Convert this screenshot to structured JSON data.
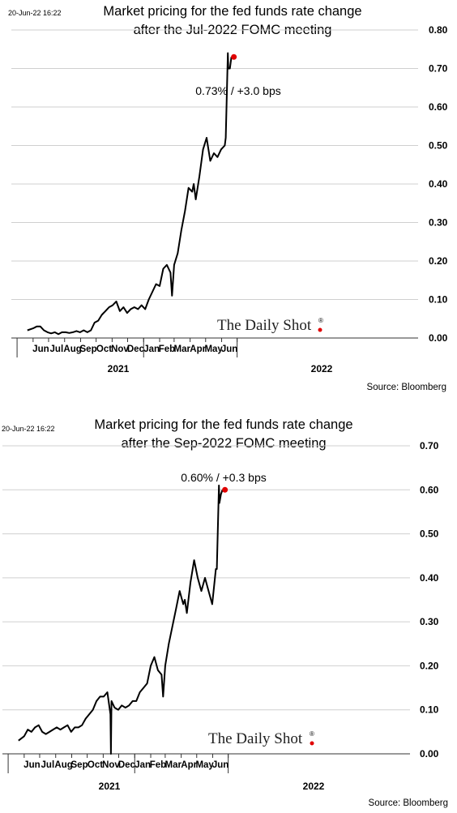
{
  "chart_data": [
    {
      "type": "line",
      "title_lines": [
        "Market pricing for the fed funds rate change",
        "after the Jul-2022 FOMC meeting"
      ],
      "timestamp": "20-Jun-22 16:22",
      "annotation": "0.73%  /  +3.0 bps",
      "watermark": "The Daily Shot",
      "watermark_mark": "®",
      "source": "Source: Bloomberg",
      "ylim": [
        0,
        0.8
      ],
      "yticks": [
        "0.00",
        "0.10",
        "0.20",
        "0.30",
        "0.40",
        "0.50",
        "0.60",
        "0.70",
        "0.80"
      ],
      "month_labels": [
        "Jun",
        "Jul",
        "Aug",
        "Sep",
        "Oct",
        "Nov",
        "Dec",
        "Jan",
        "Feb",
        "Mar",
        "Apr",
        "May",
        "Jun"
      ],
      "year_labels": [
        "2021",
        "2022"
      ],
      "grid": true,
      "x": [
        "2021-05-21",
        "2021-06-01",
        "2021-06-08",
        "2021-06-15",
        "2021-06-22",
        "2021-06-29",
        "2021-07-06",
        "2021-07-13",
        "2021-07-20",
        "2021-07-27",
        "2021-08-03",
        "2021-08-10",
        "2021-08-17",
        "2021-08-24",
        "2021-08-31",
        "2021-09-07",
        "2021-09-14",
        "2021-09-21",
        "2021-09-28",
        "2021-10-05",
        "2021-10-12",
        "2021-10-19",
        "2021-10-26",
        "2021-11-02",
        "2021-11-09",
        "2021-11-16",
        "2021-11-23",
        "2021-11-30",
        "2021-12-07",
        "2021-12-14",
        "2021-12-21",
        "2021-12-28",
        "2022-01-04",
        "2022-01-11",
        "2022-01-18",
        "2022-01-25",
        "2022-02-01",
        "2022-02-08",
        "2022-02-15",
        "2022-02-22",
        "2022-02-25",
        "2022-03-01",
        "2022-03-08",
        "2022-03-15",
        "2022-03-22",
        "2022-03-29",
        "2022-04-05",
        "2022-04-08",
        "2022-04-12",
        "2022-04-19",
        "2022-04-26",
        "2022-05-03",
        "2022-05-10",
        "2022-05-17",
        "2022-05-24",
        "2022-05-31",
        "2022-06-07",
        "2022-06-09",
        "2022-06-13",
        "2022-06-14",
        "2022-06-17",
        "2022-06-20"
      ],
      "series": [
        {
          "values": [
            0.02,
            0.025,
            0.03,
            0.03,
            0.02,
            0.015,
            0.012,
            0.015,
            0.01,
            0.015,
            0.015,
            0.013,
            0.015,
            0.018,
            0.015,
            0.02,
            0.015,
            0.02,
            0.04,
            0.045,
            0.06,
            0.07,
            0.08,
            0.085,
            0.095,
            0.07,
            0.08,
            0.065,
            0.075,
            0.08,
            0.075,
            0.085,
            0.075,
            0.1,
            0.12,
            0.14,
            0.135,
            0.18,
            0.19,
            0.17,
            0.11,
            0.19,
            0.22,
            0.28,
            0.33,
            0.39,
            0.38,
            0.4,
            0.36,
            0.42,
            0.49,
            0.52,
            0.46,
            0.48,
            0.47,
            0.49,
            0.5,
            0.52,
            0.74,
            0.7,
            0.7,
            0.73
          ]
        }
      ]
    },
    {
      "type": "line",
      "title_lines": [
        "Market pricing for the fed funds rate change",
        "after the Sep-2022 FOMC meeting"
      ],
      "timestamp": "20-Jun-22 16:22",
      "annotation": "0.60%  /  +0.3 bps",
      "watermark": "The Daily Shot",
      "watermark_mark": "®",
      "source": "Source: Bloomberg",
      "ylim": [
        0,
        0.7
      ],
      "yticks": [
        "0.00",
        "0.10",
        "0.20",
        "0.30",
        "0.40",
        "0.50",
        "0.60",
        "0.70"
      ],
      "month_labels": [
        "Jun",
        "Jul",
        "Aug",
        "Sep",
        "Oct",
        "Nov",
        "Dec",
        "Jan",
        "Feb",
        "Mar",
        "Apr",
        "May",
        "Jun"
      ],
      "year_labels": [
        "2021",
        "2022"
      ],
      "grid": true,
      "x": [
        "2021-05-21",
        "2021-06-01",
        "2021-06-08",
        "2021-06-15",
        "2021-06-22",
        "2021-06-29",
        "2021-07-06",
        "2021-07-13",
        "2021-07-20",
        "2021-07-27",
        "2021-08-03",
        "2021-08-10",
        "2021-08-17",
        "2021-08-24",
        "2021-08-31",
        "2021-09-07",
        "2021-09-14",
        "2021-09-21",
        "2021-09-28",
        "2021-10-05",
        "2021-10-12",
        "2021-10-19",
        "2021-10-26",
        "2021-11-02",
        "2021-11-09",
        "2021-11-15",
        "2021-11-16",
        "2021-11-17",
        "2021-11-23",
        "2021-11-30",
        "2021-12-07",
        "2021-12-14",
        "2021-12-21",
        "2021-12-28",
        "2022-01-04",
        "2022-01-11",
        "2022-01-18",
        "2022-01-25",
        "2022-02-01",
        "2022-02-08",
        "2022-02-15",
        "2022-02-22",
        "2022-02-25",
        "2022-03-01",
        "2022-03-08",
        "2022-03-15",
        "2022-03-22",
        "2022-03-29",
        "2022-04-05",
        "2022-04-08",
        "2022-04-12",
        "2022-04-19",
        "2022-04-26",
        "2022-05-03",
        "2022-05-10",
        "2022-05-17",
        "2022-05-24",
        "2022-05-31",
        "2022-06-07",
        "2022-06-09",
        "2022-06-13",
        "2022-06-14",
        "2022-06-17",
        "2022-06-20"
      ],
      "series": [
        {
          "values": [
            0.03,
            0.04,
            0.055,
            0.05,
            0.06,
            0.065,
            0.05,
            0.045,
            0.05,
            0.055,
            0.06,
            0.055,
            0.06,
            0.065,
            0.05,
            0.06,
            0.06,
            0.065,
            0.08,
            0.09,
            0.1,
            0.12,
            0.13,
            0.13,
            0.14,
            0.09,
            0.0,
            0.12,
            0.105,
            0.1,
            0.11,
            0.105,
            0.11,
            0.12,
            0.12,
            0.14,
            0.15,
            0.16,
            0.2,
            0.22,
            0.19,
            0.18,
            0.13,
            0.2,
            0.25,
            0.29,
            0.33,
            0.37,
            0.34,
            0.35,
            0.32,
            0.39,
            0.44,
            0.4,
            0.37,
            0.4,
            0.37,
            0.34,
            0.42,
            0.42,
            0.61,
            0.57,
            0.59,
            0.6
          ]
        }
      ]
    }
  ]
}
